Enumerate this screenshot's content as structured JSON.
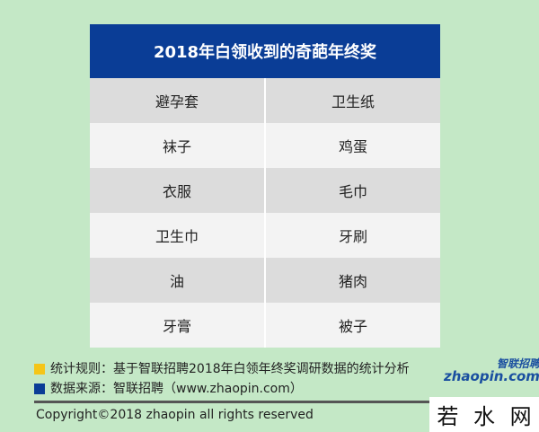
{
  "title": "2018年白领收到的奇葩年终奖",
  "rows": [
    [
      "避孕套",
      "卫生纸"
    ],
    [
      "袜子",
      "鸡蛋"
    ],
    [
      "衣服",
      "毛巾"
    ],
    [
      "卫生巾",
      "牙刷"
    ],
    [
      "油",
      "猪肉"
    ],
    [
      "牙膏",
      "被子"
    ]
  ],
  "notes": [
    {
      "text": "统计规则：基于智联招聘2018年白领年终奖调研数据的统计分析",
      "color": "#f5c518"
    },
    {
      "text": "数据来源：智联招聘（www.zhaopin.com）",
      "color": "#0a3d96"
    }
  ],
  "logo": {
    "cn": "智联招聘",
    "en": "zhaopin.com"
  },
  "copyright": "Copyright©2018 zhaopin all rights reserved",
  "watermark": [
    "若",
    "水",
    "网"
  ]
}
